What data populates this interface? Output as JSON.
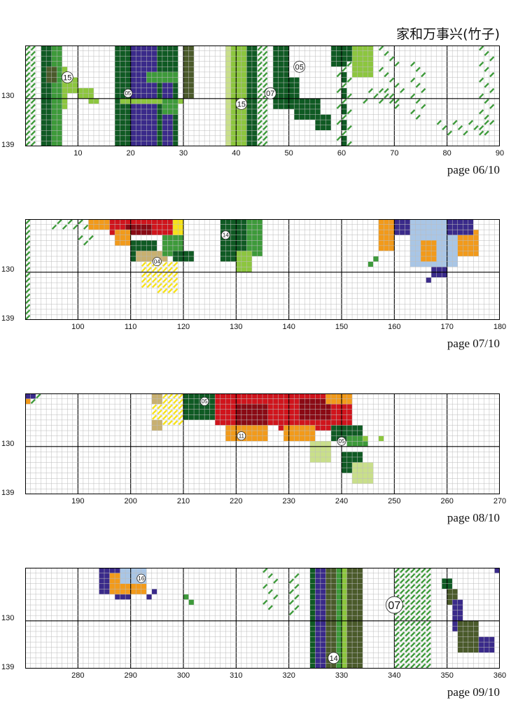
{
  "title": "家和万事兴(竹子)",
  "pages": [
    {
      "page_label": "page 06/10",
      "row_labels": [
        "130",
        "139"
      ],
      "col_labels": [
        "10",
        "20",
        "30",
        "40",
        "50",
        "60",
        "70",
        "80",
        "90"
      ],
      "symbols": [
        "15",
        "05",
        "07",
        "15",
        "05"
      ]
    },
    {
      "page_label": "page 07/10",
      "row_labels": [
        "130",
        "139"
      ],
      "col_labels": [
        "100",
        "110",
        "120",
        "130",
        "140",
        "150",
        "160",
        "170",
        "180"
      ],
      "symbols": [
        "14",
        "04"
      ]
    },
    {
      "page_label": "page 08/10",
      "row_labels": [
        "130",
        "139"
      ],
      "col_labels": [
        "190",
        "200",
        "210",
        "220",
        "230",
        "240",
        "250",
        "260",
        "270"
      ],
      "symbols": [
        "05",
        "11",
        "05"
      ]
    },
    {
      "page_label": "page 09/10",
      "row_labels": [
        "130",
        "139"
      ],
      "col_labels": [
        "280",
        "290",
        "300",
        "310",
        "320",
        "330",
        "340",
        "350",
        "360"
      ],
      "symbols": [
        "16",
        "07",
        "14"
      ]
    }
  ],
  "colors": {
    "dark_green": "#0f5a23",
    "green": "#3d9a3a",
    "light_green": "#8cc63e",
    "pale_green": "#c9df8a",
    "purple": "#3a2a8a",
    "olive": "#4a5a2a",
    "red": "#d0141c",
    "dark_red": "#8a0a14",
    "orange": "#f29a1a",
    "yellow": "#f6e21a",
    "tan": "#c8b070",
    "light_blue": "#a9c6e6"
  }
}
